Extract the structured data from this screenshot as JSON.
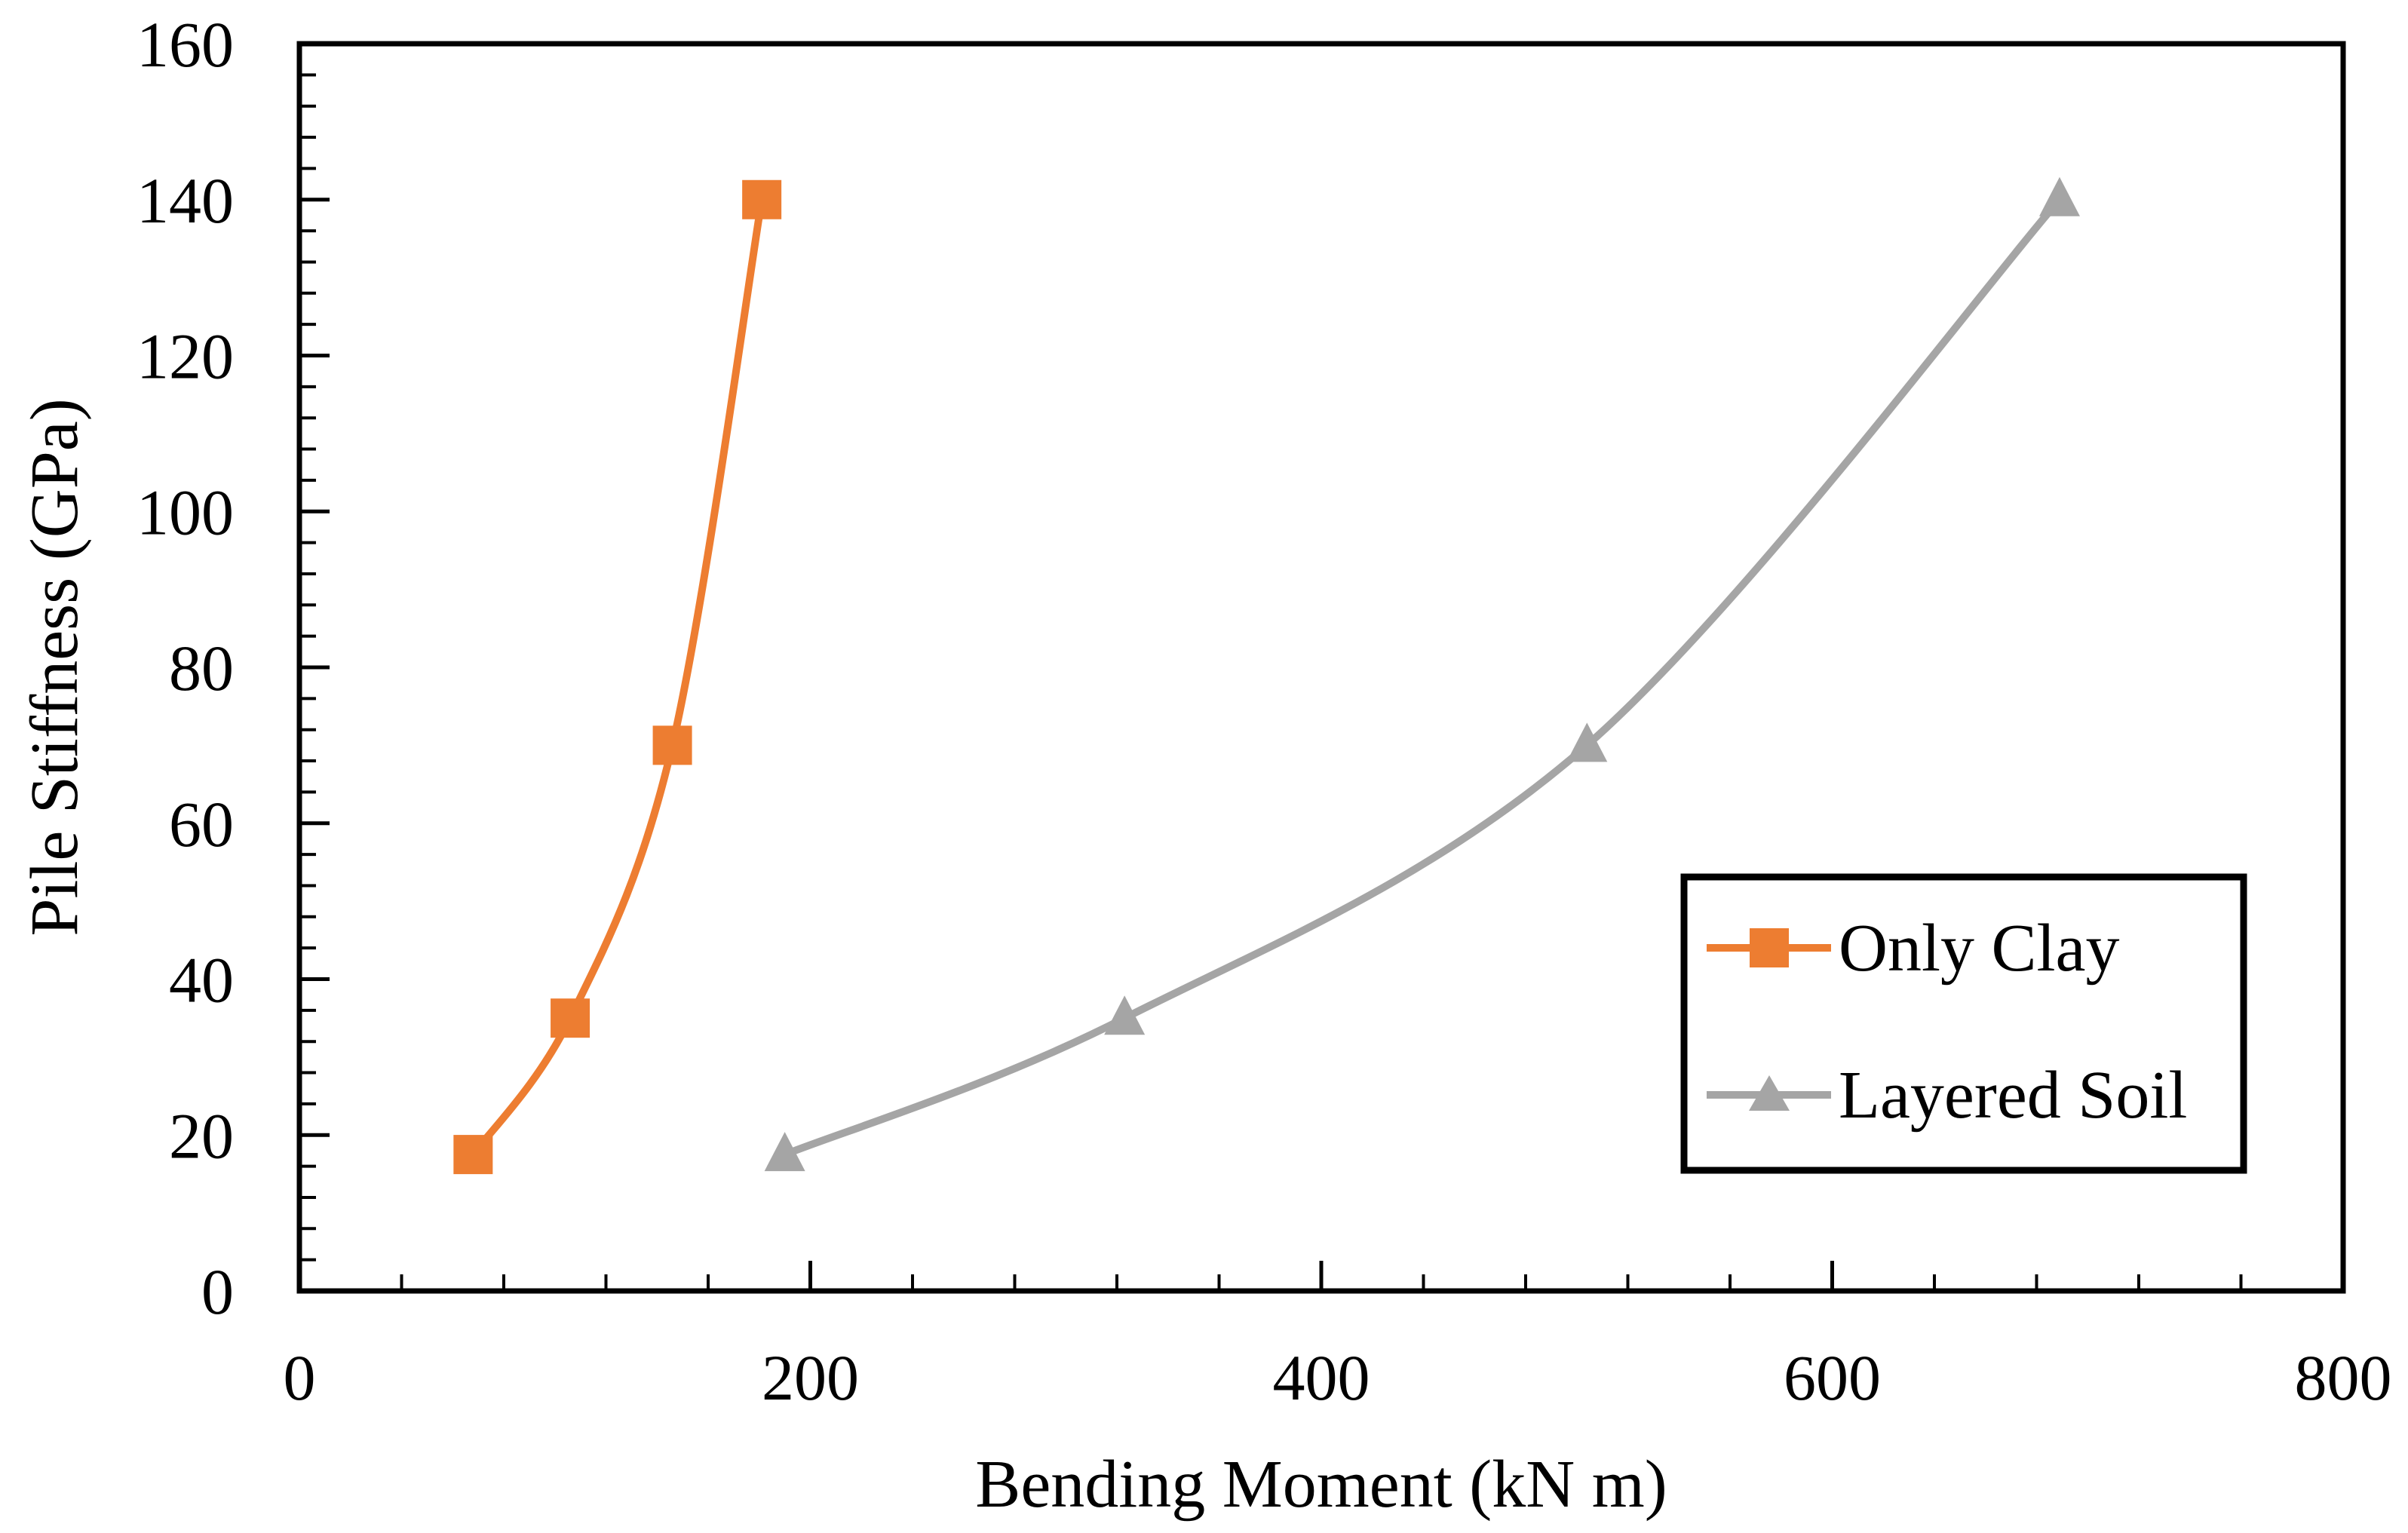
{
  "chart_data": {
    "type": "line",
    "title": "",
    "xlabel": "Bending Moment (kN m)",
    "ylabel": "Pile Stiffness (GPa)",
    "xlim": [
      0,
      800
    ],
    "ylim": [
      0,
      160
    ],
    "x_ticks": [
      0,
      200,
      400,
      600,
      800
    ],
    "y_ticks": [
      0,
      20,
      40,
      60,
      80,
      100,
      120,
      140,
      160
    ],
    "grid": false,
    "legend_position": "lower-right",
    "series": [
      {
        "name": "Only Clay",
        "color": "#ED7D31",
        "marker": "square",
        "points": [
          {
            "x": 68,
            "y": 17.5
          },
          {
            "x": 106,
            "y": 35
          },
          {
            "x": 146,
            "y": 70
          },
          {
            "x": 181,
            "y": 140
          }
        ]
      },
      {
        "name": "Layered Soil",
        "color": "#A5A5A5",
        "marker": "triangle",
        "points": [
          {
            "x": 190,
            "y": 17.5
          },
          {
            "x": 323,
            "y": 35
          },
          {
            "x": 504,
            "y": 70
          },
          {
            "x": 689,
            "y": 140
          }
        ]
      }
    ]
  }
}
